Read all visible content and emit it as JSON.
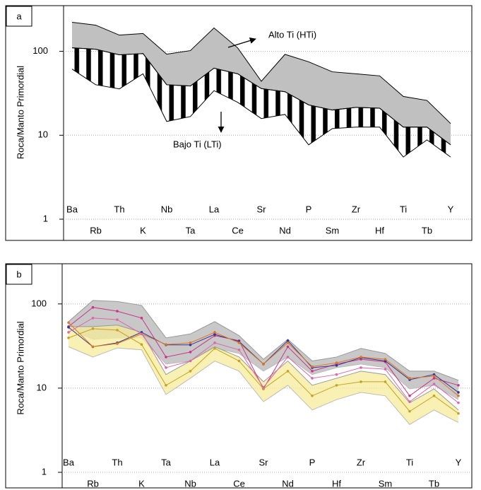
{
  "chart_data": [
    {
      "type": "envelope",
      "panel_label": "a",
      "y_label": "Roca/Manto Primordial",
      "log_scale": true,
      "grid": true,
      "ylim": [
        1,
        350
      ],
      "yticks": [
        1,
        10,
        100
      ],
      "categories": [
        "Ba",
        "Rb",
        "Th",
        "K",
        "Nb",
        "Ta",
        "La",
        "Ce",
        "Sr",
        "Nd",
        "P",
        "Sm",
        "Zr",
        "Hf",
        "Ti",
        "Tb",
        "Y"
      ],
      "envelopes": [
        {
          "name": "Alto Ti (HTi)",
          "color": "#c0c0c0",
          "upper": [
            222,
            205,
            156,
            163,
            92.5,
            102,
            190,
            110,
            44,
            92,
            75,
            57,
            54,
            51,
            29,
            26,
            13.8
          ],
          "lower": [
            110,
            106,
            91,
            94,
            40,
            38.6,
            63,
            54,
            36,
            33,
            23,
            20,
            21.5,
            21,
            12.5,
            12.5,
            7.7
          ]
        },
        {
          "name": "Bajo Ti (LTi)",
          "color": "#000000",
          "upper": [
            110,
            106,
            91,
            94,
            40,
            38.6,
            63,
            54,
            36,
            33,
            23,
            20,
            21.5,
            21,
            12.5,
            12.5,
            7.7
          ],
          "lower": [
            61.5,
            40,
            35.7,
            54,
            14.6,
            16.7,
            34,
            24.7,
            15.8,
            17.7,
            7.7,
            12,
            12.5,
            12.5,
            5.5,
            8.8,
            5.5
          ]
        }
      ]
    },
    {
      "type": "envelope",
      "panel_label": "b",
      "y_label": "Roca/Manto Primordial",
      "log_scale": true,
      "grid": true,
      "ylim": [
        1,
        300
      ],
      "yticks": [
        1,
        10,
        100
      ],
      "categories": [
        "Ba",
        "Rb",
        "Th",
        "K",
        "Ta",
        "Nb",
        "La",
        "Ce",
        "Sr",
        "Nd",
        "P",
        "Hf",
        "Zr",
        "Sm",
        "Ti",
        "Tb",
        "Y"
      ],
      "envelopes": [
        {
          "color": "#c8c8c8",
          "upper": [
            61.6,
            110,
            107,
            96,
            39.5,
            44,
            61.6,
            42,
            22,
            38,
            21,
            23.4,
            29.6,
            25.8,
            15.9,
            15.9,
            12.4
          ],
          "lower": [
            50.8,
            38,
            39.5,
            39.5,
            19.3,
            21,
            30,
            25.8,
            15.9,
            23.4,
            14.5,
            17.5,
            19.3,
            17.5,
            9.8,
            10.8,
            7.3
          ]
        },
        {
          "color": "#f7ec9a",
          "upper": [
            53.8,
            53.8,
            56,
            46,
            14.5,
            21,
            31,
            23.4,
            11.9,
            21,
            10.8,
            13.1,
            15.9,
            14.5,
            6.7,
            9.8,
            5.5
          ],
          "lower": [
            31,
            23.4,
            30,
            28.5,
            8.4,
            13.1,
            21,
            15.9,
            6.9,
            10.8,
            5.5,
            7.3,
            8.9,
            8.1,
            3.7,
            5.5,
            3.9
          ]
        }
      ],
      "series": [
        {
          "color": "#cc3388",
          "values": [
            53.8,
            91,
            82,
            68,
            23.4,
            26.8,
            42,
            36.6,
            9.8,
            31,
            15.9,
            19.3,
            22,
            20.5,
            8.1,
            13.1,
            10.8
          ]
        },
        {
          "color": "#333399",
          "values": [
            52.8,
            31,
            34.5,
            46,
            32.6,
            32.6,
            43.5,
            35.8,
            19.3,
            36.6,
            17.5,
            18.6,
            23,
            21,
            12.6,
            14.5,
            8.9
          ]
        },
        {
          "color": "#dd7722",
          "values": [
            60,
            31,
            33.8,
            44,
            33,
            34.5,
            46,
            34.5,
            19.3,
            34.5,
            18,
            20,
            23.4,
            22,
            13.1,
            13.9,
            8.1
          ]
        },
        {
          "color": "#c8a020",
          "values": [
            39.5,
            50.8,
            48.8,
            33,
            10.8,
            15.9,
            29.6,
            21,
            9.8,
            15.9,
            8.1,
            10.8,
            11.9,
            11.9,
            5.3,
            8.1,
            5
          ]
        },
        {
          "color": "#dd66aa",
          "values": [
            46,
            68,
            65,
            44,
            17.5,
            21,
            34.5,
            28.5,
            10.2,
            23.4,
            13.1,
            14.5,
            17.5,
            16.8,
            6.9,
            11.2,
            6.7
          ]
        }
      ]
    }
  ]
}
